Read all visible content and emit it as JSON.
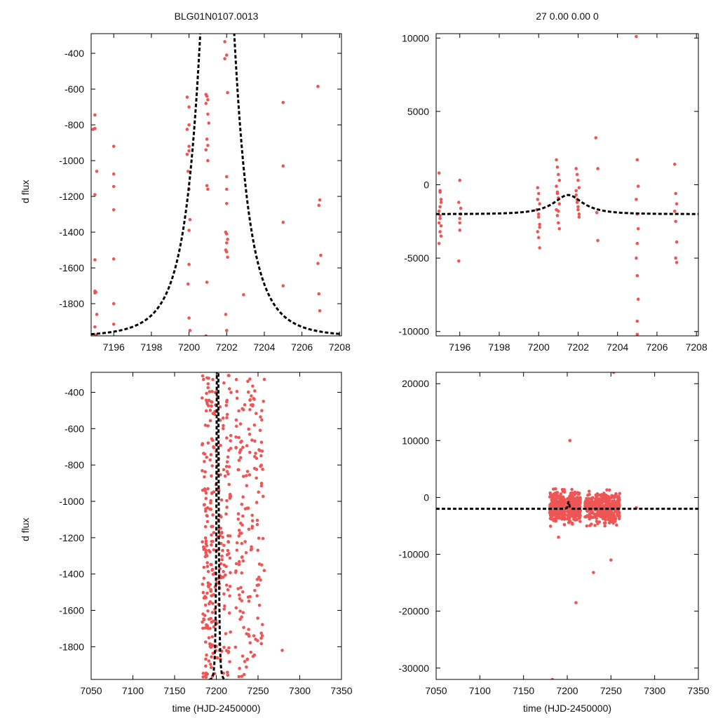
{
  "page": {
    "title_left": "BLG01N0107.0013",
    "title_right": "27  0.00  0.00  0",
    "ylabel": "d flux",
    "xlabel": "time (HJD-2450000)"
  },
  "colors": {
    "points": "#ee5555",
    "model": "#000000",
    "axes": "#000000"
  },
  "chart_data": [
    {
      "id": "top-left",
      "type": "scatter",
      "xlim": [
        7194.8,
        7208.1
      ],
      "ylim": [
        -1980,
        -290
      ],
      "xticks": [
        7196,
        7198,
        7200,
        7202,
        7204,
        7206,
        7208
      ],
      "yticks": [
        -400,
        -600,
        -800,
        -1000,
        -1200,
        -1400,
        -1600,
        -1800
      ],
      "xlabel": "",
      "ylabel": "d flux",
      "series": [
        {
          "name": "data",
          "x": [
            7194.9,
            7195.0,
            7195.0,
            7195.1,
            7195.0,
            7195.0,
            7195.0,
            7195.05,
            7195.0,
            7195.1,
            7195.0,
            7195.05,
            7196.0,
            7196.0,
            7196.0,
            7196.0,
            7196.0,
            7196.0,
            7196.0,
            7199.9,
            7200.0,
            7200.0,
            7199.9,
            7200.0,
            7200.0,
            7199.9,
            7199.95,
            7200.0,
            7200.05,
            7200.0,
            7200.0,
            7199.95,
            7200.0,
            7200.05,
            7200.9,
            7200.95,
            7201.0,
            7200.9,
            7201.0,
            7201.05,
            7200.95,
            7201.0,
            7200.9,
            7201.0,
            7200.95,
            7201.0,
            7200.95,
            7200.9,
            7201.9,
            7202.0,
            7201.9,
            7202.05,
            7202.0,
            7202.0,
            7202.0,
            7201.95,
            7202.0,
            7202.05,
            7202.0,
            7201.95,
            7202.0,
            7202.05,
            7201.95,
            7202.0,
            7202.9,
            7205.0,
            7205.0,
            7205.0,
            7205.0,
            7206.85,
            7206.95,
            7206.9,
            7207.0,
            7206.85,
            7206.9,
            7206.95
          ],
          "y": [
            -825,
            -820,
            -745,
            -1060,
            -1190,
            -1555,
            -1730,
            -1735,
            -1740,
            -1860,
            -1930,
            -1975,
            -920,
            -1075,
            -1145,
            -1275,
            -1550,
            -1800,
            -1915,
            -645,
            -700,
            -800,
            -825,
            -920,
            -945,
            -965,
            -1060,
            -1160,
            -1330,
            -1390,
            -1580,
            -1690,
            -1880,
            -1950,
            -630,
            -640,
            -660,
            -680,
            -740,
            -790,
            -880,
            -915,
            -940,
            -1000,
            -1140,
            -1160,
            -1680,
            -1980,
            -335,
            -410,
            -430,
            -620,
            -1090,
            -1160,
            -1240,
            -1400,
            -1410,
            -1440,
            -1460,
            -1500,
            -1510,
            -1540,
            -1860,
            -1950,
            -1750,
            -675,
            -1030,
            -1345,
            -1700,
            -585,
            -1220,
            -1250,
            -1530,
            -1575,
            -1745,
            -1840
          ]
        }
      ],
      "model": {
        "t0": 7201.5,
        "u0": 0.48,
        "tE": 1.6,
        "base": -1985,
        "amp": 3480
      }
    },
    {
      "id": "top-right",
      "type": "scatter",
      "xlim": [
        7194.8,
        7208.1
      ],
      "ylim": [
        -10300,
        10300
      ],
      "xticks": [
        7196,
        7198,
        7200,
        7202,
        7204,
        7206,
        7208
      ],
      "yticks": [
        10000,
        5000,
        0,
        -5000,
        -10000
      ],
      "xlabel": "",
      "ylabel": "",
      "series": [
        {
          "name": "data",
          "x": [
            7194.95,
            7195.0,
            7195.05,
            7194.95,
            7195.0,
            7195.05,
            7195.0,
            7194.95,
            7195.05,
            7195.0,
            7194.95,
            7195.05,
            7195.0,
            7195.0,
            7196.0,
            7195.95,
            7196.05,
            7196.0,
            7196.0,
            7195.95,
            7196.05,
            7196.0,
            7199.95,
            7200.0,
            7200.05,
            7199.9,
            7200.0,
            7200.05,
            7199.95,
            7200.0,
            7200.05,
            7199.95,
            7200.0,
            7200.05,
            7200.9,
            7200.95,
            7201.0,
            7201.05,
            7200.9,
            7200.95,
            7201.0,
            7201.05,
            7200.9,
            7200.95,
            7201.0,
            7201.05,
            7200.95,
            7201.0,
            7201.9,
            7201.95,
            7202.0,
            7202.05,
            7201.9,
            7201.95,
            7202.0,
            7202.05,
            7201.95,
            7202.0,
            7202.05,
            7201.9,
            7202.9,
            7203.0,
            7202.95,
            7203.0,
            7204.95,
            7205.0,
            7205.05,
            7204.95,
            7205.0,
            7205.05,
            7205.0,
            7204.95,
            7205.0,
            7205.05,
            7205.0,
            7205.0,
            7206.9,
            7206.95,
            7207.0,
            7206.9,
            7206.95,
            7207.0,
            7206.95,
            7207.0
          ],
          "y": [
            800,
            -500,
            -1200,
            -1800,
            -2300,
            -2800,
            -3200,
            -4000,
            -3500,
            -1500,
            -2600,
            -1000,
            -2100,
            -400,
            300,
            -1200,
            -2000,
            -2600,
            -3100,
            -5200,
            -1600,
            -2300,
            -200,
            -600,
            -1300,
            -1700,
            -2200,
            -2700,
            -3200,
            -3600,
            -4300,
            -1000,
            -2000,
            -2900,
            1700,
            1200,
            700,
            300,
            -100,
            -500,
            -900,
            -1300,
            -1700,
            -2100,
            -2600,
            -3000,
            -600,
            -1800,
            1100,
            700,
            300,
            -200,
            -700,
            -1200,
            -1700,
            -2200,
            -1000,
            -1500,
            -2000,
            -400,
            3200,
            1100,
            -1900,
            -3800,
            10100,
            1700,
            -100,
            -1000,
            -2000,
            -3000,
            -4000,
            -5000,
            -6200,
            -7800,
            -9300,
            -10200,
            1400,
            -600,
            -1300,
            -1800,
            -2500,
            -3900,
            -5000,
            -5300
          ]
        }
      ],
      "model": {
        "t0": 7201.5,
        "u0": 0.48,
        "tE": 1.6,
        "base": -2000,
        "amp": 1300
      }
    },
    {
      "id": "bottom-left",
      "type": "scatter",
      "xlim": [
        7050,
        7350
      ],
      "ylim": [
        -1980,
        -290
      ],
      "xticks": [
        7050,
        7100,
        7150,
        7200,
        7250,
        7300,
        7350
      ],
      "yticks": [
        -400,
        -600,
        -800,
        -1000,
        -1200,
        -1400,
        -1600,
        -1800
      ],
      "xlabel": "time (HJD-2450000)",
      "ylabel": "d flux",
      "series": [
        {
          "name": "data",
          "generated": {
            "seed": 1313,
            "count": 460,
            "clusters": [
              [
                7183,
                7197,
                160
              ],
              [
                7198,
                7218,
                130
              ],
              [
                7223,
                7258,
                170
              ]
            ],
            "outliers": [
              [
                7279,
                -1820
              ]
            ]
          }
        }
      ],
      "model": {
        "t0": 7201.5,
        "u0": 0.48,
        "tE": 1.6,
        "base": -1985,
        "amp": 3480
      }
    },
    {
      "id": "bottom-right",
      "type": "scatter",
      "xlim": [
        7050,
        7350
      ],
      "ylim": [
        -32000,
        22000
      ],
      "xticks": [
        7050,
        7100,
        7150,
        7200,
        7250,
        7300,
        7350
      ],
      "yticks": [
        20000,
        10000,
        0,
        -10000,
        -20000,
        -30000
      ],
      "xlabel": "time (HJD-2450000)",
      "ylabel": "",
      "series": [
        {
          "name": "data",
          "generated": {
            "seed": 4242,
            "count": 900,
            "clusters": [
              [
                7180,
                7198,
                300
              ],
              [
                7200,
                7215,
                220
              ],
              [
                7220,
                7260,
                380
              ]
            ],
            "outliers": [
              [
                7279,
                -1800
              ],
              [
                7253,
                22000
              ],
              [
                7183,
                -32000
              ],
              [
                7210,
                -18500
              ],
              [
                7203,
                10000
              ],
              [
                7230,
                -13200
              ],
              [
                7250,
                -11000
              ],
              [
                7190,
                -7000
              ]
            ]
          }
        }
      ],
      "model": {
        "t0": 7201.5,
        "u0": 0.48,
        "tE": 1.6,
        "base": -2000,
        "amp": 1300
      }
    }
  ]
}
